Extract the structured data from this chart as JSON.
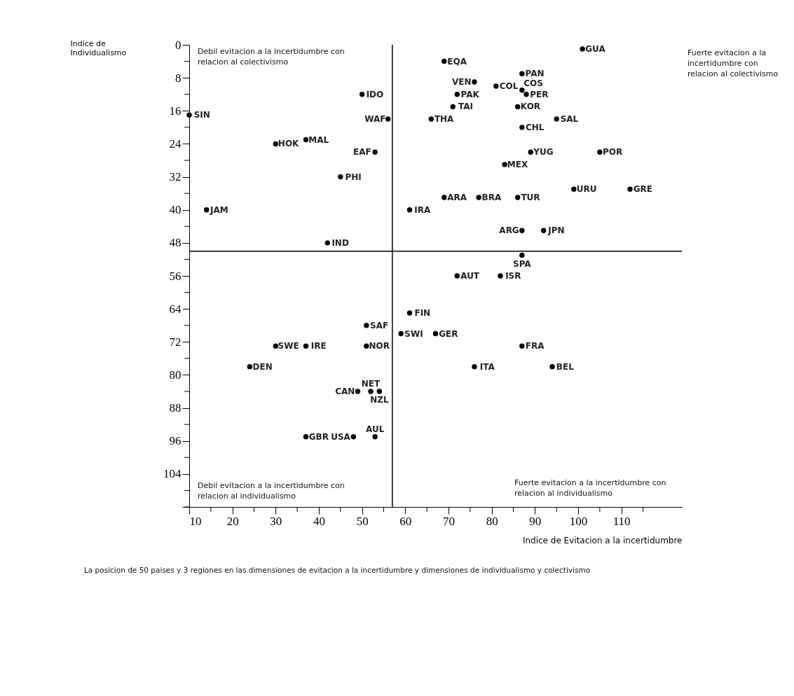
{
  "chart_data": {
    "type": "scatter",
    "xlabel": "Indice de Evitacion a la incertidumbre",
    "ylabel": "Indice de Individualismo",
    "xlim": [
      10,
      124
    ],
    "ylim": [
      112,
      0
    ],
    "xticks": [
      10,
      {
        "value": 15,
        "label": null
      },
      20,
      {
        "value": 25,
        "label": null
      },
      30,
      {
        "value": 35,
        "label": null
      },
      40,
      {
        "value": 45,
        "label": null
      },
      50,
      {
        "value": 55,
        "label": null
      },
      60,
      {
        "value": 65,
        "label": null
      },
      70,
      {
        "value": 75,
        "label": null
      },
      80,
      {
        "value": 85,
        "label": null
      },
      90,
      {
        "value": 95,
        "label": null
      },
      100,
      {
        "value": 105,
        "label": null
      },
      110,
      {
        "value": 115,
        "label": null
      }
    ],
    "yticks": [
      0,
      {
        "value": 4,
        "label": null
      },
      8,
      {
        "value": 12,
        "label": null
      },
      16,
      {
        "value": 20,
        "label": null
      },
      24,
      {
        "value": 28,
        "label": null
      },
      32,
      {
        "value": 36,
        "label": null
      },
      40,
      {
        "value": 44,
        "label": null
      },
      48,
      {
        "value": 52,
        "label": null
      },
      56,
      {
        "value": 60,
        "label": null
      },
      64,
      {
        "value": 68,
        "label": null
      },
      72,
      {
        "value": 76,
        "label": null
      },
      80,
      {
        "value": 84,
        "label": null
      },
      88,
      {
        "value": 92,
        "label": null
      },
      96,
      {
        "value": 100,
        "label": null
      },
      104,
      {
        "value": 108,
        "label": null
      },
      {
        "value": 112,
        "label": null
      }
    ],
    "grid": false,
    "marker": "circle",
    "series": [
      {
        "color": "#000000",
        "x": [
          10,
          30,
          37,
          45,
          50,
          56,
          53,
          14,
          42,
          69,
          87,
          101,
          76,
          81,
          72,
          87,
          88,
          71,
          86,
          95,
          66,
          87,
          105,
          83,
          89,
          86,
          99,
          112,
          69,
          77,
          61,
          87,
          92,
          51,
          30,
          37,
          51,
          24,
          49,
          52,
          54,
          37,
          48,
          53,
          87,
          82,
          72,
          61,
          59,
          67,
          87,
          76,
          94
        ],
        "values": [
          17,
          24,
          23,
          32,
          12,
          18,
          26,
          40,
          48,
          4,
          7,
          1,
          9,
          10,
          12,
          11,
          12,
          15,
          15,
          18,
          18,
          20,
          26,
          29,
          26,
          37,
          35,
          35,
          37,
          37,
          40,
          45,
          45,
          68,
          73,
          73,
          73,
          78,
          84,
          84,
          84,
          95,
          95,
          95,
          51,
          56,
          56,
          65,
          70,
          70,
          73,
          78,
          78
        ],
        "value_labels": [
          "SIN",
          "HOK",
          "MAL",
          "PHI",
          "IDO",
          "WAF",
          "EAF",
          "JAM",
          "IND",
          "EQA",
          "PAN",
          "GUA",
          "VEN",
          "COL",
          "PAK",
          "COS",
          "PER",
          "TAI",
          "KOR",
          "SAL",
          "THA",
          "CHL",
          "POR",
          "MEX",
          "YUG",
          "TUR",
          "URU",
          "GRE",
          "ARA",
          "BRA",
          "IRA",
          "ARG",
          "JPN",
          "SAF",
          "SWE",
          "IRE",
          "NOR",
          "DEN",
          "CAN",
          "NET",
          "NZL",
          "GBR",
          "USA",
          "AUL",
          "SPA",
          "ISR",
          "AUT",
          "FIN",
          "SWI",
          "GER",
          "FRA",
          "ITA",
          "BEL"
        ]
      }
    ],
    "ref_lines": [
      {
        "axis": "x",
        "value": 57,
        "color": "#000000"
      },
      {
        "axis": "y",
        "value": 50,
        "color": "#000000"
      }
    ],
    "annotations": [
      "Debil evitacion a la incertidumbre con relacion al colectivismo",
      "Fuerte evitacion a la incertidumbre con relacion al colectivismo",
      "Debil evitacion a la incertidumbre con relacion al individualismo",
      "Fuerte evitacion a la incertidumbre con relacion al individualismo",
      "La posicion de 50 paises y 3 regiones en las dimensiones de evitacion a la incertidumbre y dimensiones de individualismo y colectivismo"
    ]
  }
}
